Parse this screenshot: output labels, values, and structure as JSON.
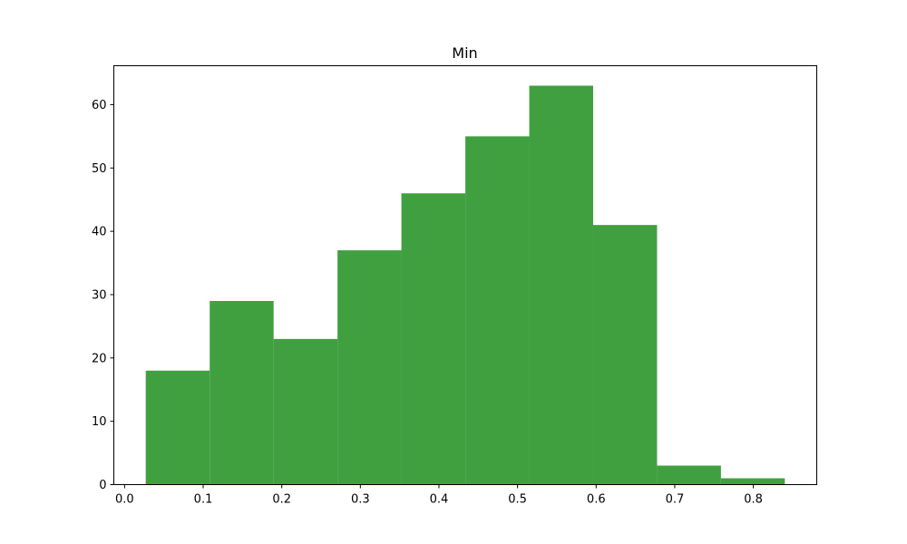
{
  "chart_data": {
    "type": "bar",
    "title": "Min",
    "xlabel": "",
    "ylabel": "",
    "xlim": [
      -0.0137,
      0.8807
    ],
    "ylim": [
      0,
      66.15
    ],
    "bar_color": "#40a040",
    "grid": false,
    "bins": [
      {
        "x0": 0.0269,
        "x1": 0.1083,
        "count": 18
      },
      {
        "x0": 0.1083,
        "x1": 0.1896,
        "count": 29
      },
      {
        "x0": 0.1896,
        "x1": 0.2709,
        "count": 23
      },
      {
        "x0": 0.2709,
        "x1": 0.3522,
        "count": 37
      },
      {
        "x0": 0.3522,
        "x1": 0.4336,
        "count": 46
      },
      {
        "x0": 0.4336,
        "x1": 0.5149,
        "count": 55
      },
      {
        "x0": 0.5149,
        "x1": 0.5962,
        "count": 63
      },
      {
        "x0": 0.5962,
        "x1": 0.6775,
        "count": 41
      },
      {
        "x0": 0.6775,
        "x1": 0.7588,
        "count": 3
      },
      {
        "x0": 0.7588,
        "x1": 0.8401,
        "count": 1
      }
    ],
    "x_ticks": [
      {
        "value": 0.0,
        "label": "0.0"
      },
      {
        "value": 0.1,
        "label": "0.1"
      },
      {
        "value": 0.2,
        "label": "0.2"
      },
      {
        "value": 0.3,
        "label": "0.3"
      },
      {
        "value": 0.4,
        "label": "0.4"
      },
      {
        "value": 0.5,
        "label": "0.5"
      },
      {
        "value": 0.6,
        "label": "0.6"
      },
      {
        "value": 0.7,
        "label": "0.7"
      },
      {
        "value": 0.8,
        "label": "0.8"
      }
    ],
    "y_ticks": [
      {
        "value": 0,
        "label": "0"
      },
      {
        "value": 10,
        "label": "10"
      },
      {
        "value": 20,
        "label": "20"
      },
      {
        "value": 30,
        "label": "30"
      },
      {
        "value": 40,
        "label": "40"
      },
      {
        "value": 50,
        "label": "50"
      },
      {
        "value": 60,
        "label": "60"
      }
    ]
  }
}
